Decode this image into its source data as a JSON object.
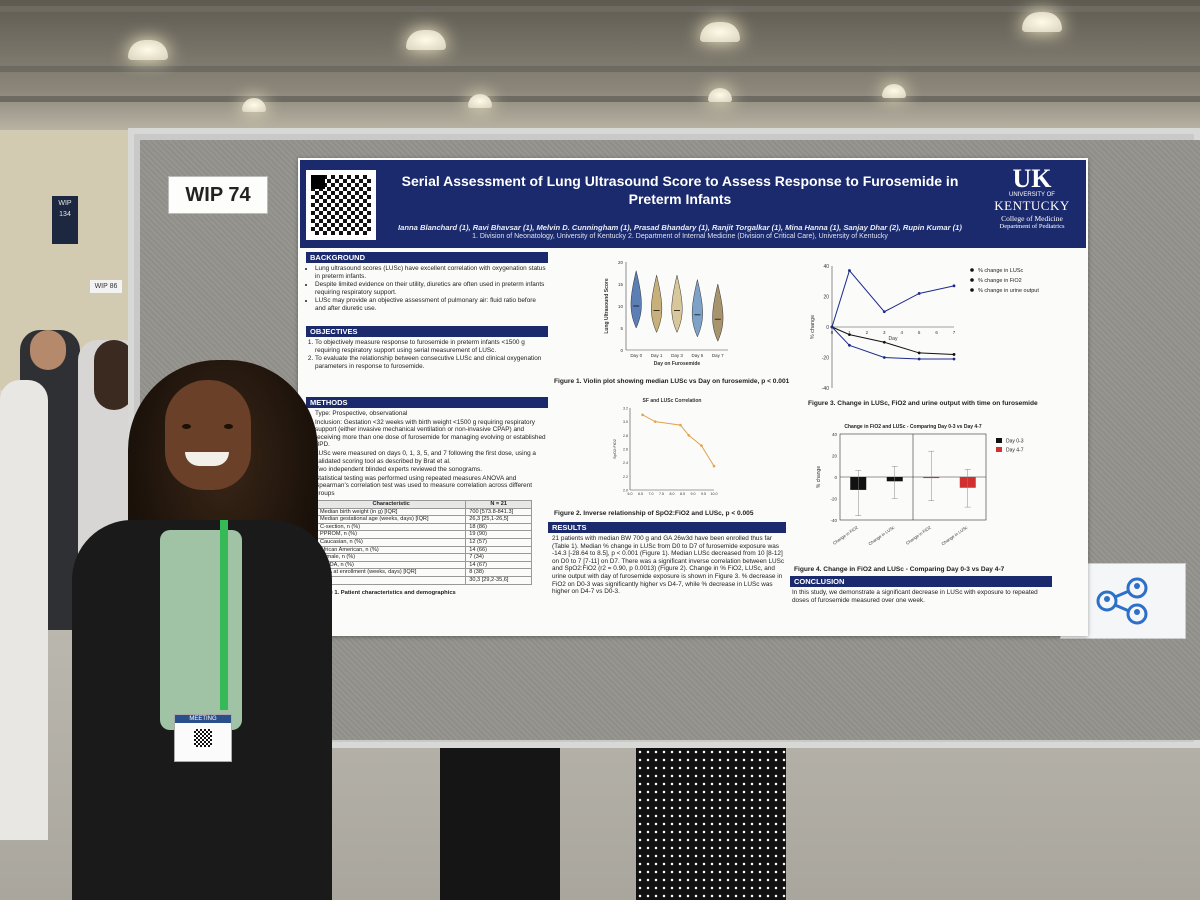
{
  "scene": {
    "board_label": "WIP 74",
    "hall_sign": "WIP\n134",
    "neighbor_label": "WIP 86",
    "share_icon": "share-network-icon",
    "badge_text": "MEETING"
  },
  "poster": {
    "title": "Serial Assessment of Lung Ultrasound Score to Assess Response to Furosemide in Preterm Infants",
    "authors": "Ianna Blanchard (1), Ravi Bhavsar (1), Melvin D. Cunningham (1), Prasad Bhandary (1), Ranjit Torgalkar (1), Mina Hanna (1), Sanjay Dhar (2), Rupin Kumar (1)",
    "affiliations": "1. Division of Neonatology, University of Kentucky 2. Department of Internal Medicine (Division of Critical Care), University of Kentucky",
    "logo": {
      "mark": "UK",
      "university": "UNIVERSITY OF",
      "state": "KENTUCKY",
      "college": "College of Medicine",
      "department": "Department of Pediatrics"
    },
    "background": {
      "heading": "BACKGROUND",
      "items": [
        "Lung ultrasound scores (LUSc) have excellent correlation with oxygenation status in preterm infants.",
        "Despite limited evidence on their utility, diuretics are often used in preterm infants requiring respiratory support.",
        "LUSc may provide an objective assessment of pulmonary air: fluid ratio before and after diuretic use."
      ]
    },
    "objectives": {
      "heading": "OBJECTIVES",
      "items": [
        "To objectively measure response to furosemide in preterm infants <1500 g requiring respiratory support using serial measurement of LUSc.",
        "To evaluate the relationship between consecutive LUSc and clinical oxygenation parameters in response to furosemide."
      ]
    },
    "methods": {
      "heading": "METHODS",
      "items": [
        "Type: Prospective, observational",
        "Inclusion: Gestation <32 weeks with birth weight <1500 g requiring respiratory support (either invasive mechanical ventilation or non-invasive CPAP) and receiving more than one dose of furosemide for managing evolving or established BPD.",
        "LUSc were measured on days 0, 1, 3, 5, and 7 following the first dose, using a validated scoring tool as described by Brat et al.",
        "Two independent blinded experts reviewed the sonograms.",
        "Statistical testing was performed using repeated measures ANOVA and Spearman's correlation test was used to measure correlation across different groups"
      ]
    },
    "table": {
      "headers": [
        "Characteristic",
        "N = 21"
      ],
      "rows": [
        [
          "Median birth weight (in g) [IQR]",
          "700 [573.8-841.3]"
        ],
        [
          "Median gestational age (weeks, days) [IQR]",
          "26,3 [25,1-26,5]"
        ],
        [
          "C-section, n (%)",
          "18 (86)"
        ],
        [
          "PPROM, n (%)",
          "19 (90)"
        ],
        [
          "Caucasian, n (%)",
          "12 (57)"
        ],
        [
          "African American, n (%)",
          "14 (66)"
        ],
        [
          "Female, n (%)",
          "7 (34)"
        ],
        [
          "hsPDA, n (%)",
          "14 (67)"
        ],
        [
          "PMA at enrollment (weeks, days) [IQR]",
          "8 (38)"
        ],
        [
          "",
          "30,3 [29,2-35,6]"
        ]
      ],
      "caption": "Table 1. Patient characteristics and demographics"
    },
    "results": {
      "heading": "RESULTS",
      "text": "21 patients with median BW 700 g and GA 26w3d have been enrolled thus far (Table 1). Median % change in LUSc from D0 to D7 of furosemide exposure was -14.3 [-28.64 to 8.5], p < 0.001 (Figure 1). Median LUSc decreased from 10 [8-12] on D0 to 7 [7-11] on D7. There was a significant inverse correlation between LUSc and SpO2:FiO2 (r2 = 0.90, p 0.0013) (Figure 2). Change in % FiO2, LUSc, and urine output with day of furosemide exposure is shown in Figure 3. % decrease in FiO2 on D0-3 was significantly higher vs D4-7, while % decrease in LUSc was higher on D4-7 vs D0-3."
    },
    "conclusion": {
      "heading": "CONCLUSION",
      "text": "In this study, we demonstrate a significant decrease in LUSc with exposure to repeated doses of furosemide measured over one week."
    },
    "fig1_caption": "Figure 1. Violin plot showing median LUSc vs Day on furosemide, p < 0.001",
    "fig2_caption": "Figure 2. Inverse relationship of SpO2:FiO2 and LUSc, p < 0.005",
    "fig3_caption": "Figure 3. Change in LUSc, FiO2 and urine output with time on furosemide",
    "fig4_caption": "Figure 4. Change in FiO2 and LUSc - Comparing Day 0-3 vs Day 4-7"
  },
  "chart_data": [
    {
      "type": "violin",
      "ylabel": "Lung Ultrasound Score",
      "xlabel": "Day on Furosemide",
      "categories": [
        "Day 0",
        "Day 1",
        "Day 3",
        "Day 5",
        "Day 7"
      ],
      "medians": [
        10,
        9,
        9,
        8,
        7
      ],
      "ylim": [
        0,
        20
      ],
      "yticks": [
        0,
        5,
        10,
        15,
        20
      ],
      "colors": [
        "#5b7fb4",
        "#c8b07a",
        "#d9c79c",
        "#7ea1c8",
        "#a8946c"
      ]
    },
    {
      "type": "line",
      "title": "SF and LUSc Correlation",
      "ylabel": "SpO2:FiO2",
      "x": [
        6.6,
        7.2,
        8.4,
        8.8,
        9.4,
        10.0
      ],
      "y": [
        3.1,
        3.0,
        2.95,
        2.8,
        2.65,
        2.35
      ],
      "xticks": [
        6.0,
        6.5,
        7.0,
        7.5,
        8.0,
        8.5,
        9.0,
        9.5,
        10.0
      ],
      "xlim": [
        6.0,
        10.0
      ],
      "ylim": [
        2.0,
        3.2
      ],
      "yticks": [
        2.0,
        2.2,
        2.4,
        2.6,
        2.8,
        3.0,
        3.2
      ],
      "color": "#e3a24c"
    },
    {
      "type": "line",
      "ylabel": "% change",
      "xlabel": "Day",
      "x": [
        0,
        1,
        2,
        3,
        4,
        5,
        6,
        7
      ],
      "ylim": [
        -40,
        40
      ],
      "yticks": [
        -40,
        -20,
        0,
        20,
        40
      ],
      "series": [
        {
          "name": "% change in LUSc",
          "x": [
            0,
            1,
            3,
            5,
            7
          ],
          "values": [
            0,
            -5,
            -10,
            -17,
            -18
          ]
        },
        {
          "name": "% change in FiO2",
          "x": [
            0,
            1,
            3,
            5,
            7
          ],
          "values": [
            0,
            -12,
            -20,
            -21,
            -21
          ]
        },
        {
          "name": "% change in urine output",
          "x": [
            0,
            1,
            3,
            5,
            7
          ],
          "values": [
            0,
            37,
            10,
            22,
            27
          ]
        }
      ]
    },
    {
      "type": "bar",
      "title": "Change in FiO2 and LUSc - Comparing Day 0-3 vs Day 4-7",
      "ylabel": "% change",
      "categories": [
        "Change in FiO2",
        "Change in LUSc",
        "Change in FiO2",
        "Change in LUSc"
      ],
      "ylim": [
        -40,
        40
      ],
      "yticks": [
        -40,
        -20,
        0,
        20,
        40
      ],
      "series": [
        {
          "name": "Day 0-3",
          "values": [
            -12,
            -4,
            null,
            null
          ],
          "color": "#111111"
        },
        {
          "name": "Day 4-7",
          "values": [
            null,
            null,
            -1,
            -10
          ],
          "color": "#d03030"
        }
      ],
      "error": [
        [
          -36,
          6
        ],
        [
          -20,
          10
        ],
        [
          -22,
          24
        ],
        [
          -28,
          7
        ]
      ]
    }
  ]
}
